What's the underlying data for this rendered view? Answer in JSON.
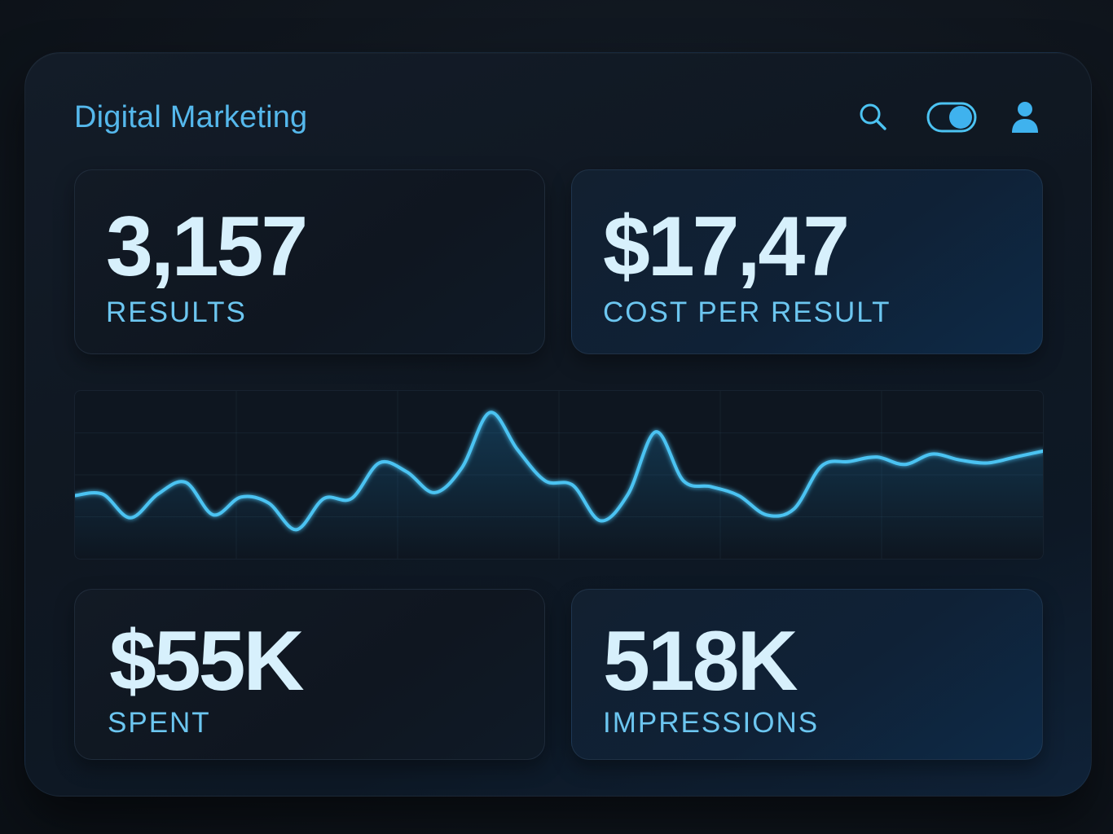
{
  "app": {
    "title": "Digital Marketing"
  },
  "toolbar": {
    "icons": [
      "search-icon",
      "toggle-switch-icon",
      "user-icon"
    ],
    "toggle_on": true
  },
  "metrics": {
    "results": {
      "value": "3,157",
      "label": "RESULTS"
    },
    "cost_per_result": {
      "value": "$17,47",
      "label": "COST PER RESULT"
    },
    "spent": {
      "value": "$55K",
      "label": "SPENT"
    },
    "impressions": {
      "value": "518K",
      "label": "IMPRESSIONS"
    }
  },
  "colors": {
    "accent": "#4cc3f2",
    "title": "#55b8ec",
    "value_text": "#d7f0fc",
    "label_text": "#6cc6f0",
    "background": "#10161e"
  },
  "chart_data": {
    "type": "line",
    "title": "",
    "xlabel": "",
    "ylabel": "",
    "grid": true,
    "ylim": [
      0,
      100
    ],
    "x": [
      0,
      1,
      2,
      3,
      4,
      5,
      6,
      7,
      8,
      9,
      10,
      11,
      12,
      13,
      14,
      15,
      16,
      17,
      18,
      19,
      20,
      21,
      22,
      23,
      24,
      25,
      26,
      27,
      28,
      29,
      30,
      31,
      32,
      33,
      34,
      35
    ],
    "series": [
      {
        "values": [
          36,
          37,
          21,
          37,
          45,
          23,
          35,
          31,
          13,
          34,
          34,
          58,
          52,
          38,
          55,
          92,
          67,
          46,
          43,
          19,
          37,
          79,
          46,
          42,
          36,
          23,
          27,
          56,
          59,
          62,
          57,
          64,
          60,
          58,
          62,
          66
        ]
      }
    ]
  }
}
